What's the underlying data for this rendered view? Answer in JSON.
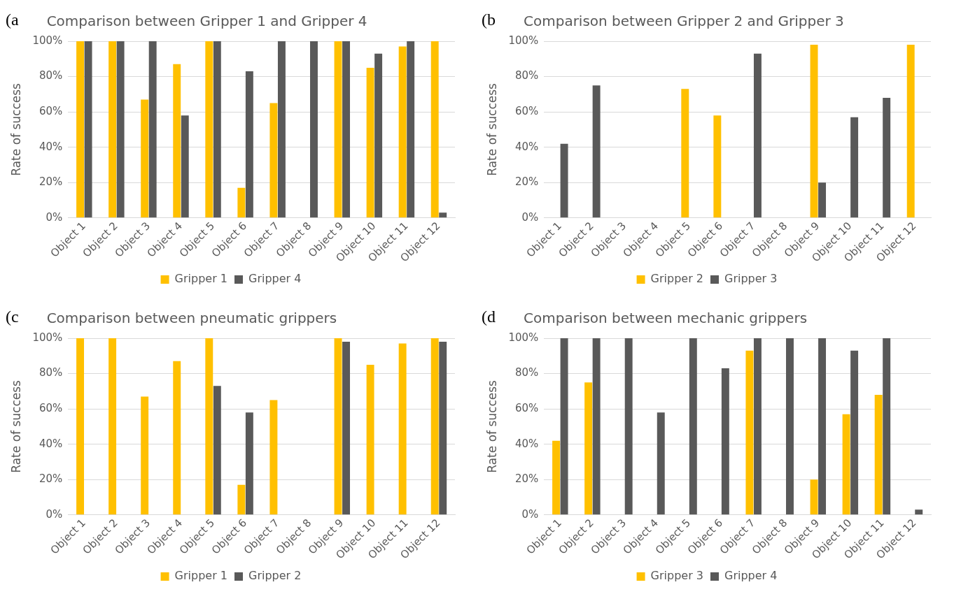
{
  "chart_data": [
    {
      "type": "bar",
      "title": "Comparison between Gripper 1 and Gripper 4",
      "annotations": [
        "(a"
      ],
      "ylabel": "Rate of success",
      "categories": [
        "Object 1",
        "Object 2",
        "Object 3",
        "Object 4",
        "Object 5",
        "Object 6",
        "Object 7",
        "Object 8",
        "Object 9",
        "Object 10",
        "Object 11",
        "Object 12"
      ],
      "series": [
        {
          "name": "Gripper 1",
          "color": "#ffc000",
          "values": [
            100,
            100,
            67,
            87,
            100,
            17,
            65,
            0,
            100,
            85,
            97,
            100
          ]
        },
        {
          "name": "Gripper 4",
          "color": "#595959",
          "values": [
            100,
            100,
            100,
            58,
            100,
            83,
            100,
            100,
            100,
            93,
            100,
            3
          ]
        }
      ],
      "ylim": [
        0,
        100
      ],
      "yticks": [
        {
          "value": 0,
          "label": "0%"
        },
        {
          "value": 20,
          "label": "20%"
        },
        {
          "value": 40,
          "label": "40%"
        },
        {
          "value": 60,
          "label": "60%"
        },
        {
          "value": 80,
          "label": "80%"
        },
        {
          "value": 100,
          "label": "100%"
        }
      ],
      "grid": "y",
      "legend": "bottom"
    },
    {
      "type": "bar",
      "title": "Comparison between Gripper 2 and Gripper 3",
      "annotations": [
        "(b"
      ],
      "ylabel": "Rate of success",
      "categories": [
        "Object 1",
        "Object 2",
        "Object 3",
        "Object 4",
        "Object 5",
        "Object 6",
        "Object 7",
        "Object 8",
        "Object 9",
        "Object 10",
        "Object 11",
        "Object 12"
      ],
      "series": [
        {
          "name": "Gripper 2",
          "color": "#ffc000",
          "values": [
            0,
            0,
            0,
            0,
            73,
            58,
            0,
            0,
            98,
            0,
            0,
            98
          ]
        },
        {
          "name": "Gripper 3",
          "color": "#595959",
          "values": [
            42,
            75,
            0,
            0,
            0,
            0,
            93,
            0,
            20,
            57,
            68,
            0
          ]
        }
      ],
      "ylim": [
        0,
        100
      ],
      "yticks": [
        {
          "value": 0,
          "label": "0%"
        },
        {
          "value": 20,
          "label": "20%"
        },
        {
          "value": 40,
          "label": "40%"
        },
        {
          "value": 60,
          "label": "60%"
        },
        {
          "value": 80,
          "label": "80%"
        },
        {
          "value": 100,
          "label": "100%"
        }
      ],
      "grid": "y",
      "legend": "bottom"
    },
    {
      "type": "bar",
      "title": "Comparison between pneumatic grippers",
      "annotations": [
        "(c"
      ],
      "ylabel": "Rate of success",
      "categories": [
        "Object 1",
        "Object 2",
        "Object 3",
        "Object 4",
        "Object 5",
        "Object 6",
        "Object 7",
        "Object 8",
        "Object 9",
        "Object 10",
        "Object 11",
        "Object 12"
      ],
      "series": [
        {
          "name": "Gripper 1",
          "color": "#ffc000",
          "values": [
            100,
            100,
            67,
            87,
            100,
            17,
            65,
            0,
            100,
            85,
            97,
            100
          ]
        },
        {
          "name": "Gripper 2",
          "color": "#595959",
          "values": [
            0,
            0,
            0,
            0,
            73,
            58,
            0,
            0,
            98,
            0,
            0,
            98
          ]
        }
      ],
      "ylim": [
        0,
        100
      ],
      "yticks": [
        {
          "value": 0,
          "label": "0%"
        },
        {
          "value": 20,
          "label": "20%"
        },
        {
          "value": 40,
          "label": "40%"
        },
        {
          "value": 60,
          "label": "60%"
        },
        {
          "value": 80,
          "label": "80%"
        },
        {
          "value": 100,
          "label": "100%"
        }
      ],
      "grid": "y",
      "legend": "bottom"
    },
    {
      "type": "bar",
      "title": "Comparison between mechanic grippers",
      "annotations": [
        "(d"
      ],
      "ylabel": "Rate of success",
      "categories": [
        "Object 1",
        "Object 2",
        "Object 3",
        "Object 4",
        "Object 5",
        "Object 6",
        "Object 7",
        "Object 8",
        "Object 9",
        "Object 10",
        "Object 11",
        "Object 12"
      ],
      "series": [
        {
          "name": "Gripper 3",
          "color": "#ffc000",
          "values": [
            42,
            75,
            0,
            0,
            0,
            0,
            93,
            0,
            20,
            57,
            68,
            0
          ]
        },
        {
          "name": "Gripper 4",
          "color": "#595959",
          "values": [
            100,
            100,
            100,
            58,
            100,
            83,
            100,
            100,
            100,
            93,
            100,
            3
          ]
        }
      ],
      "ylim": [
        0,
        100
      ],
      "yticks": [
        {
          "value": 0,
          "label": "0%"
        },
        {
          "value": 20,
          "label": "20%"
        },
        {
          "value": 40,
          "label": "40%"
        },
        {
          "value": 60,
          "label": "60%"
        },
        {
          "value": 80,
          "label": "80%"
        },
        {
          "value": 100,
          "label": "100%"
        }
      ],
      "grid": "y",
      "legend": "bottom"
    }
  ]
}
